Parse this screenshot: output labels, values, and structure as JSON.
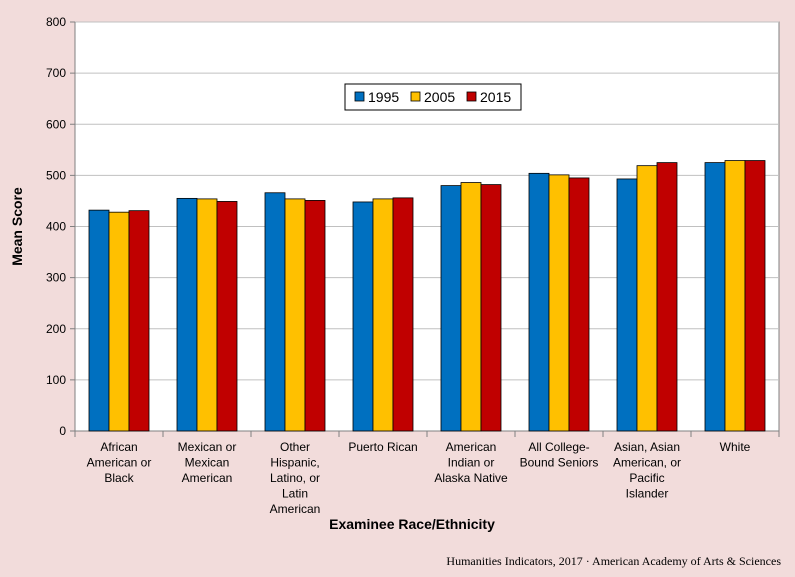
{
  "chart_data": {
    "type": "bar",
    "title": "",
    "xlabel": "Examinee Race/Ethnicity",
    "ylabel": "Mean Score",
    "ylim": [
      0,
      800
    ],
    "yticks": [
      0,
      100,
      200,
      300,
      400,
      500,
      600,
      700,
      800
    ],
    "grid": true,
    "legend_position": "top-center",
    "categories": [
      [
        "African",
        "American or",
        "Black"
      ],
      [
        "Mexican or",
        "Mexican",
        "American"
      ],
      [
        "Other",
        "Hispanic,",
        "Latino, or",
        "Latin",
        "American"
      ],
      [
        "Puerto Rican"
      ],
      [
        "American",
        "Indian or",
        "Alaska Native"
      ],
      [
        "All College-",
        "Bound Seniors"
      ],
      [
        "Asian, Asian",
        "American, or",
        "Pacific",
        "Islander"
      ],
      [
        "White"
      ]
    ],
    "series": [
      {
        "name": "1995",
        "color": "#0070c0",
        "values": [
          432,
          455,
          466,
          448,
          480,
          504,
          493,
          525
        ]
      },
      {
        "name": "2005",
        "color": "#ffc000",
        "values": [
          428,
          454,
          454,
          454,
          486,
          501,
          519,
          529
        ]
      },
      {
        "name": "2015",
        "color": "#c00000",
        "values": [
          431,
          449,
          451,
          456,
          482,
          495,
          525,
          529
        ]
      }
    ]
  },
  "credit": "Humanities Indicators, 2017 · American Academy of Arts & Sciences"
}
